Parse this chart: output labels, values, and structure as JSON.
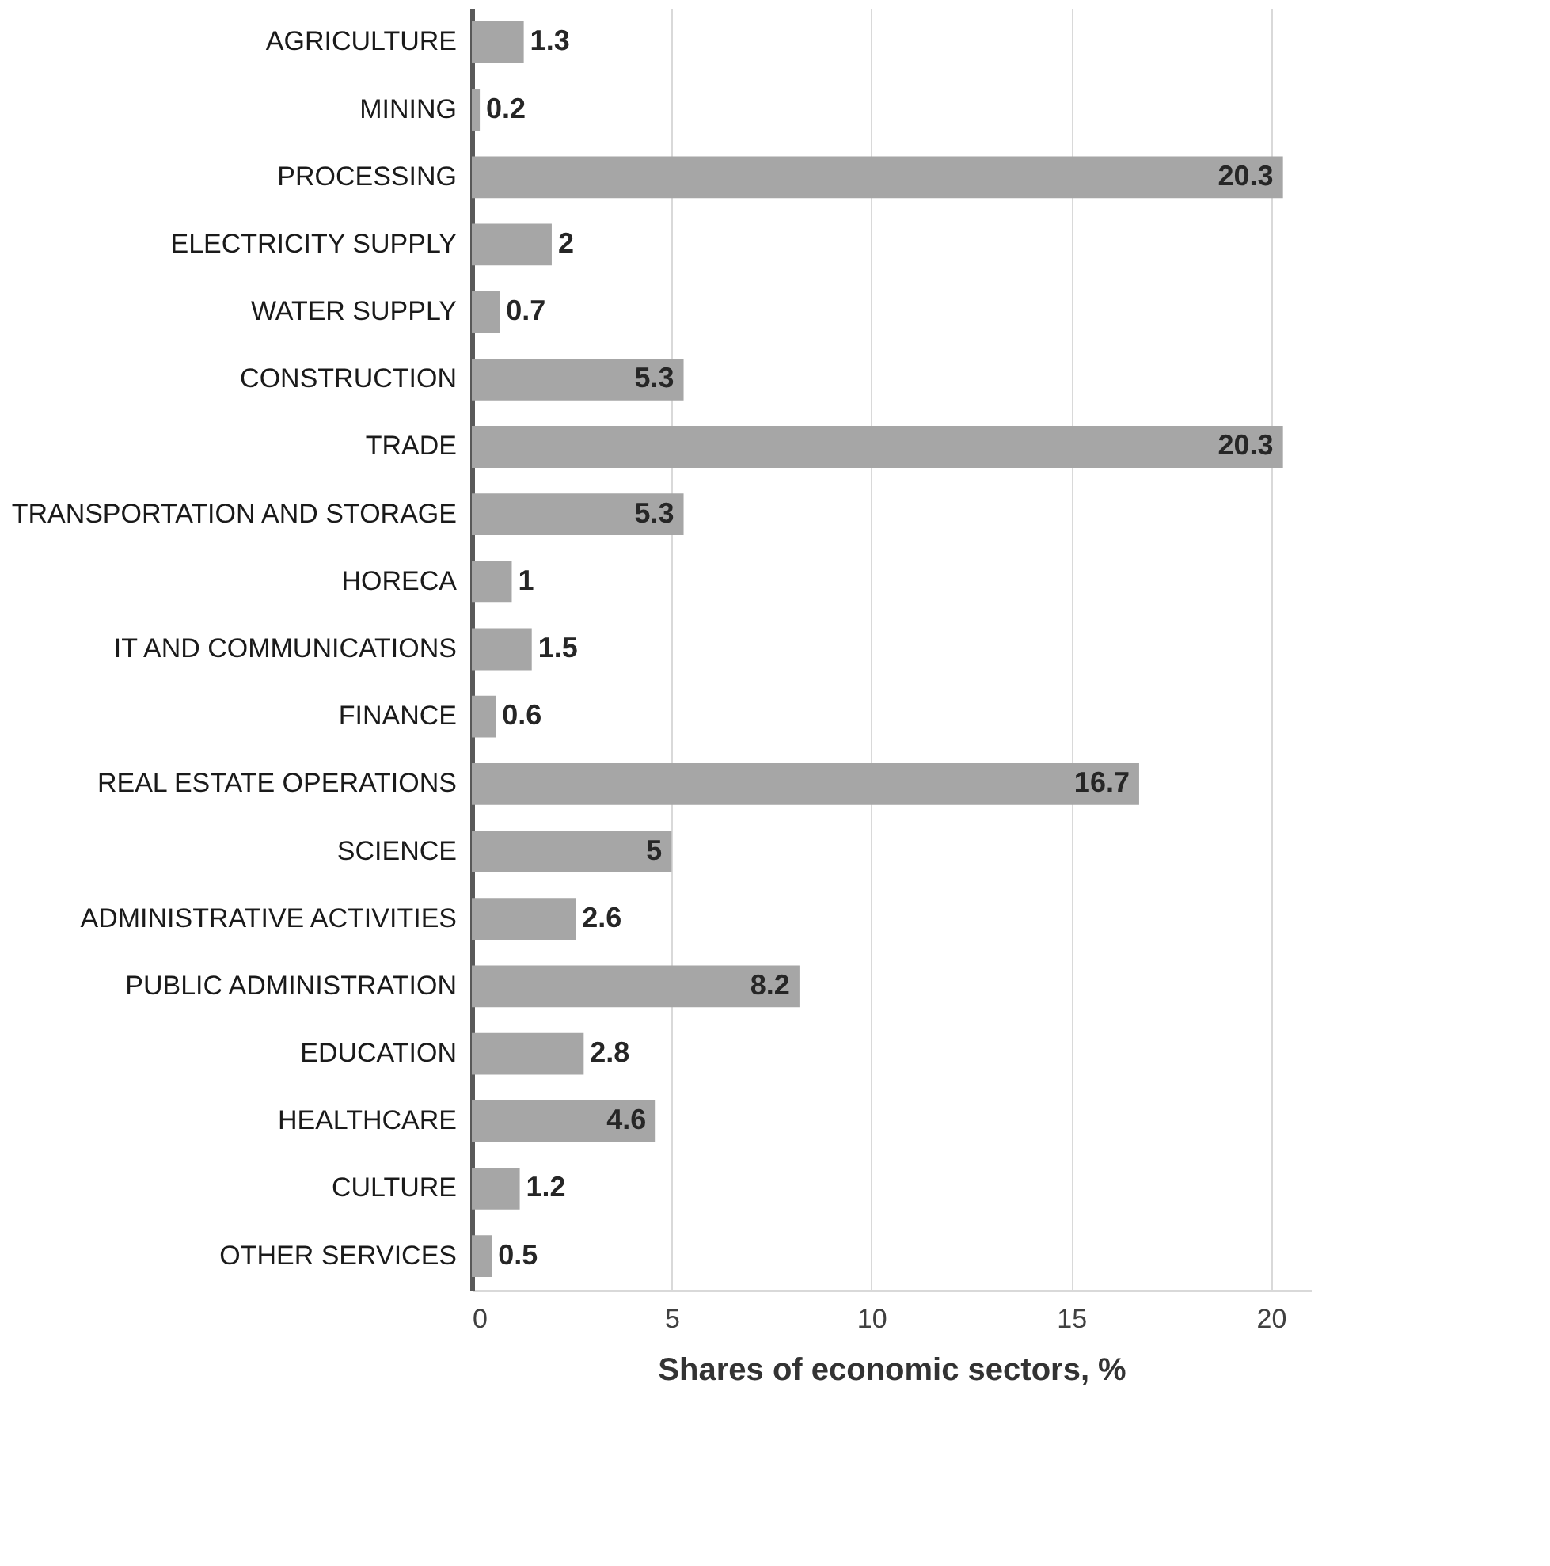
{
  "chart_data": {
    "type": "bar",
    "orientation": "horizontal",
    "xlabel": "Shares of economic sectors, %",
    "categories": [
      "AGRICULTURE",
      "MINING",
      "PROCESSING",
      "ELECTRICITY SUPPLY",
      "WATER SUPPLY",
      "CONSTRUCTION",
      "TRADE",
      "TRANSPORTATION AND STORAGE",
      "HORECA",
      "IT AND COMMUNICATIONS",
      "FINANCE",
      "REAL ESTATE OPERATIONS",
      "SCIENCE",
      "ADMINISTRATIVE ACTIVITIES",
      "PUBLIC ADMINISTRATION",
      "EDUCATION",
      "HEALTHCARE",
      "CULTURE",
      "OTHER SERVICES"
    ],
    "values": [
      1.3,
      0.2,
      20.3,
      2,
      0.7,
      5.3,
      20.3,
      5.3,
      1,
      1.5,
      0.6,
      16.7,
      5,
      2.6,
      8.2,
      2.8,
      4.6,
      1.2,
      0.5
    ],
    "color": "#a6a6a6",
    "xlim": [
      0,
      21
    ],
    "xticks": [
      0,
      5,
      10,
      15,
      20
    ],
    "grid": "x",
    "data_labels": true
  }
}
